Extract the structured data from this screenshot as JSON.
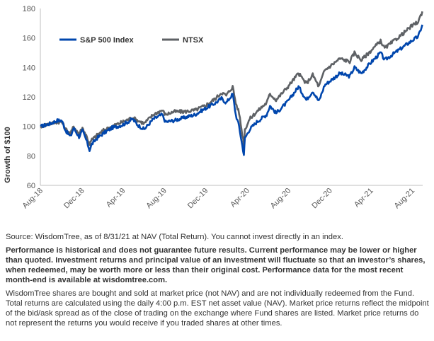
{
  "chart_data": {
    "type": "line",
    "title": "",
    "ylabel": "Growth of $100",
    "xlabel": "",
    "ylim": [
      60,
      180
    ],
    "yticks": [
      60,
      80,
      100,
      120,
      140,
      160,
      180
    ],
    "xlim": [
      "2018-08-01",
      "2021-09-01"
    ],
    "xticks": [
      {
        "label": "Aug-18",
        "date": "2018-08-01"
      },
      {
        "label": "Dec-18",
        "date": "2018-12-01"
      },
      {
        "label": "Apr-19",
        "date": "2019-04-01"
      },
      {
        "label": "Aug-19",
        "date": "2019-08-01"
      },
      {
        "label": "Dec-19",
        "date": "2019-12-01"
      },
      {
        "label": "Apr-20",
        "date": "2020-04-01"
      },
      {
        "label": "Aug-20",
        "date": "2020-08-01"
      },
      {
        "label": "Dec-20",
        "date": "2020-12-01"
      },
      {
        "label": "Apr-21",
        "date": "2021-04-01"
      },
      {
        "label": "Aug-21",
        "date": "2021-08-01"
      }
    ],
    "legend_position": "top-left",
    "grid": false,
    "series": [
      {
        "name": "S&P 500 Index",
        "color": "#0046ad",
        "points": [
          [
            "2018-08-02",
            100
          ],
          [
            "2018-08-31",
            102
          ],
          [
            "2018-09-20",
            104
          ],
          [
            "2018-10-03",
            104
          ],
          [
            "2018-10-15",
            97
          ],
          [
            "2018-10-29",
            93
          ],
          [
            "2018-11-07",
            99
          ],
          [
            "2018-11-23",
            93
          ],
          [
            "2018-12-03",
            97
          ],
          [
            "2018-12-14",
            91
          ],
          [
            "2018-12-24",
            84
          ],
          [
            "2018-12-31",
            88
          ],
          [
            "2019-01-15",
            92
          ],
          [
            "2019-02-01",
            95
          ],
          [
            "2019-02-28",
            99
          ],
          [
            "2019-03-31",
            101
          ],
          [
            "2019-04-30",
            105
          ],
          [
            "2019-05-15",
            101
          ],
          [
            "2019-06-03",
            98
          ],
          [
            "2019-06-30",
            105
          ],
          [
            "2019-07-26",
            108
          ],
          [
            "2019-08-05",
            103
          ],
          [
            "2019-08-30",
            104
          ],
          [
            "2019-09-30",
            106
          ],
          [
            "2019-10-31",
            108
          ],
          [
            "2019-11-29",
            112
          ],
          [
            "2019-12-31",
            116
          ],
          [
            "2020-01-17",
            119
          ],
          [
            "2020-01-31",
            116
          ],
          [
            "2020-02-19",
            122
          ],
          [
            "2020-02-28",
            108
          ],
          [
            "2020-03-09",
            100
          ],
          [
            "2020-03-16",
            90
          ],
          [
            "2020-03-23",
            81
          ],
          [
            "2020-03-26",
            92
          ],
          [
            "2020-04-09",
            98
          ],
          [
            "2020-04-30",
            103
          ],
          [
            "2020-05-29",
            108
          ],
          [
            "2020-06-08",
            114
          ],
          [
            "2020-06-26",
            109
          ],
          [
            "2020-07-31",
            117
          ],
          [
            "2020-08-31",
            127
          ],
          [
            "2020-09-23",
            118
          ],
          [
            "2020-10-12",
            124
          ],
          [
            "2020-10-30",
            117
          ],
          [
            "2020-11-16",
            128
          ],
          [
            "2020-12-31",
            136
          ],
          [
            "2021-01-29",
            134
          ],
          [
            "2021-02-12",
            140
          ],
          [
            "2021-03-04",
            136
          ],
          [
            "2021-03-31",
            143
          ],
          [
            "2021-04-30",
            150
          ],
          [
            "2021-05-12",
            145
          ],
          [
            "2021-06-30",
            153
          ],
          [
            "2021-07-30",
            158
          ],
          [
            "2021-08-19",
            161
          ],
          [
            "2021-08-31",
            169
          ]
        ]
      },
      {
        "name": "NTSX",
        "color": "#5e6165",
        "points": [
          [
            "2018-08-02",
            100
          ],
          [
            "2018-08-31",
            102
          ],
          [
            "2018-09-20",
            103
          ],
          [
            "2018-10-03",
            103
          ],
          [
            "2018-10-15",
            98
          ],
          [
            "2018-10-29",
            95
          ],
          [
            "2018-11-07",
            100
          ],
          [
            "2018-11-23",
            95
          ],
          [
            "2018-12-03",
            99
          ],
          [
            "2018-12-14",
            94
          ],
          [
            "2018-12-24",
            88
          ],
          [
            "2018-12-31",
            91
          ],
          [
            "2019-01-15",
            94
          ],
          [
            "2019-02-01",
            97
          ],
          [
            "2019-02-28",
            100
          ],
          [
            "2019-03-31",
            103
          ],
          [
            "2019-04-30",
            106
          ],
          [
            "2019-05-15",
            104
          ],
          [
            "2019-06-03",
            102
          ],
          [
            "2019-06-30",
            108
          ],
          [
            "2019-07-26",
            111
          ],
          [
            "2019-08-05",
            108
          ],
          [
            "2019-08-30",
            110
          ],
          [
            "2019-09-30",
            110
          ],
          [
            "2019-10-31",
            111
          ],
          [
            "2019-11-29",
            114
          ],
          [
            "2019-12-31",
            119
          ],
          [
            "2020-01-17",
            123
          ],
          [
            "2020-01-31",
            121
          ],
          [
            "2020-02-19",
            127
          ],
          [
            "2020-02-28",
            116
          ],
          [
            "2020-03-09",
            109
          ],
          [
            "2020-03-16",
            98
          ],
          [
            "2020-03-23",
            88
          ],
          [
            "2020-03-26",
            98
          ],
          [
            "2020-04-09",
            105
          ],
          [
            "2020-04-30",
            110
          ],
          [
            "2020-05-29",
            116
          ],
          [
            "2020-06-08",
            122
          ],
          [
            "2020-06-26",
            118
          ],
          [
            "2020-07-31",
            127
          ],
          [
            "2020-08-31",
            136
          ],
          [
            "2020-09-23",
            129
          ],
          [
            "2020-10-12",
            135
          ],
          [
            "2020-10-30",
            127
          ],
          [
            "2020-11-16",
            138
          ],
          [
            "2020-12-31",
            146
          ],
          [
            "2021-01-29",
            144
          ],
          [
            "2021-02-12",
            150
          ],
          [
            "2021-03-04",
            145
          ],
          [
            "2021-03-31",
            151
          ],
          [
            "2021-04-30",
            158
          ],
          [
            "2021-05-12",
            153
          ],
          [
            "2021-06-30",
            162
          ],
          [
            "2021-07-30",
            168
          ],
          [
            "2021-08-19",
            171
          ],
          [
            "2021-08-31",
            178
          ]
        ]
      }
    ]
  },
  "notes": {
    "source": "Source: WisdomTree, as of 8/31/21 at NAV (Total Return). You cannot invest directly in an index.",
    "performance": "Performance is historical and does not guarantee future results. Current performance may be lower or higher than quoted. Investment returns and principal value of an investment will fluctuate so that an investor’s shares, when redeemed, may be worth more or less than their original cost. Performance data for the most recent month-end is available at wisdomtree.com.",
    "market_price": "WisdomTree shares are bought and sold at market price (not NAV) and are not individually redeemed from the Fund. Total returns are calculated using the daily 4:00 p.m. EST net asset value (NAV). Market price returns reflect the midpoint of the bid/ask spread as of the close of trading on the exchange where Fund shares are listed. Market price returns do not represent the returns you would receive if you traded shares at other times."
  }
}
